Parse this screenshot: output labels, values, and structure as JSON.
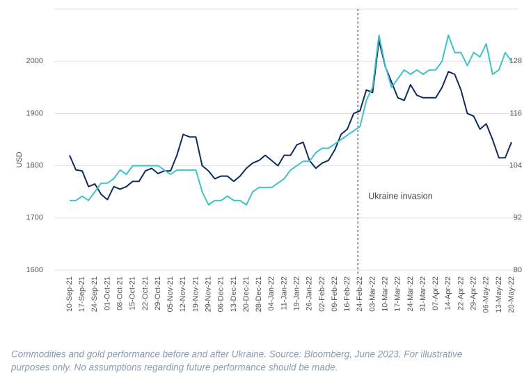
{
  "chart_data": {
    "type": "line",
    "y_label": "USD",
    "caption": [
      "Commodities and gold performance before and after Ukraine. Source: Bloomberg, June 2023. For illustrative",
      "purposes only. No assumptions regarding future performance should be made."
    ],
    "annotation": {
      "text": "Ukraine invasion",
      "x": "24-Feb-22"
    },
    "categories": [
      "10-Sep-21",
      null,
      "17-Sep-21",
      null,
      "24-Sep-21",
      null,
      "01-Oct-21",
      null,
      "08-Oct-21",
      null,
      "15-Oct-21",
      null,
      "22-Oct-21",
      null,
      "29-Oct-21",
      null,
      "05-Nov-21",
      null,
      "12-Nov-21",
      null,
      "19-Nov-21",
      null,
      "29-Nov-21",
      null,
      "06-Dec-21",
      null,
      "13-Dec-21",
      null,
      "20-Dec-21",
      null,
      "28-Dec-21",
      null,
      "04-Jan-22",
      null,
      "11-Jan-22",
      null,
      "19-Jan-22",
      null,
      "26-Jan-22",
      null,
      "02-Feb-22",
      null,
      "09-Feb-22",
      null,
      "16-Feb-22",
      null,
      "24-Feb-22",
      null,
      "03-Mar-22",
      null,
      "10-Mar-22",
      null,
      "17-Mar-22",
      null,
      "24-Mar-22",
      null,
      "31-Mar-22",
      null,
      "07-Apr-22",
      null,
      "14-Apr-22",
      null,
      "22-Apr-22",
      null,
      "29-Apr-22",
      null,
      "06-May-22",
      null,
      "13-May-22",
      null,
      "20-May-22"
    ],
    "series": [
      {
        "color": "#0d2a5c",
        "axis": "y",
        "values": [
          1820,
          1792,
          1790,
          1760,
          1765,
          1745,
          1735,
          1760,
          1755,
          1760,
          1770,
          1770,
          1790,
          1795,
          1785,
          1790,
          1790,
          1820,
          1860,
          1855,
          1855,
          1800,
          1790,
          1775,
          1780,
          1780,
          1770,
          1780,
          1795,
          1805,
          1810,
          1820,
          1810,
          1800,
          1820,
          1820,
          1840,
          1845,
          1810,
          1795,
          1805,
          1810,
          1830,
          1860,
          1870,
          1900,
          1905,
          1945,
          1940,
          2040,
          1990,
          1960,
          1930,
          1925,
          1955,
          1935,
          1930,
          1930,
          1930,
          1950,
          1980,
          1975,
          1945,
          1900,
          1895,
          1870,
          1880,
          1850,
          1815,
          1815,
          1845
        ]
      },
      {
        "color": "#3fc1c9",
        "axis": "y2",
        "values": [
          96,
          96,
          97,
          96,
          98,
          100,
          100,
          101,
          103,
          102,
          104,
          104,
          104,
          104,
          104,
          103,
          102,
          103,
          103,
          103,
          103,
          98,
          95,
          96,
          96,
          97,
          96,
          96,
          95,
          98,
          99,
          99,
          99,
          100,
          101,
          103,
          104,
          105,
          105,
          107,
          108,
          108,
          109,
          110,
          111,
          112,
          113,
          119,
          122,
          134,
          127,
          122,
          124,
          126,
          125,
          126,
          125,
          126,
          126,
          128,
          134,
          130,
          130,
          127,
          130,
          129,
          132,
          125,
          126,
          130,
          128
        ]
      }
    ],
    "ylim": [
      1600,
      2100
    ],
    "yticks": [
      1600,
      1700,
      1800,
      1900,
      2000
    ],
    "y2lim": [
      80,
      140
    ],
    "y2ticks": [
      80,
      92,
      104,
      116,
      128
    ],
    "grid": true
  }
}
